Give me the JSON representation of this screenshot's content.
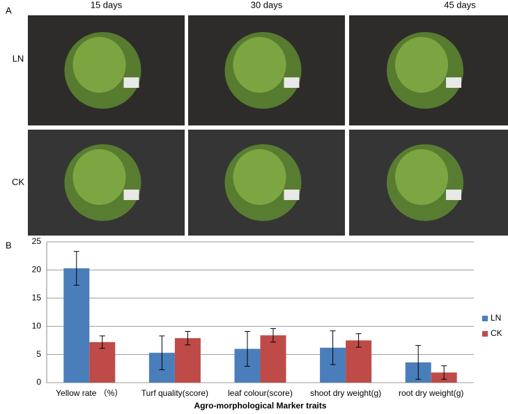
{
  "panel_a": {
    "label": "A",
    "columns": [
      "15 days",
      "30 days",
      "45 days"
    ],
    "rows": [
      "LN",
      "CK"
    ]
  },
  "panel_b_label": "B",
  "chart_data": {
    "type": "bar",
    "x_label": "Agro-morphological Marker traits",
    "categories": [
      "Yellow rate （%）",
      "Turf quality(score)",
      "leaf colour(score)",
      "shoot dry weight(g)",
      "root dry weight(g)"
    ],
    "series": [
      {
        "name": "LN",
        "color": "#4a7ebb",
        "values": [
          20.3,
          5.3,
          6.0,
          6.2,
          3.6
        ],
        "errors": [
          3.0,
          3.0,
          3.1,
          3.0,
          3.0
        ]
      },
      {
        "name": "CK",
        "color": "#be4b48",
        "values": [
          7.2,
          7.9,
          8.4,
          7.5,
          1.8
        ],
        "errors": [
          1.1,
          1.2,
          1.2,
          1.2,
          1.2
        ]
      }
    ],
    "ylim": [
      0,
      25
    ],
    "yticks": [
      0,
      5,
      10,
      15,
      20,
      25
    ],
    "grid": true,
    "legend": "right"
  }
}
